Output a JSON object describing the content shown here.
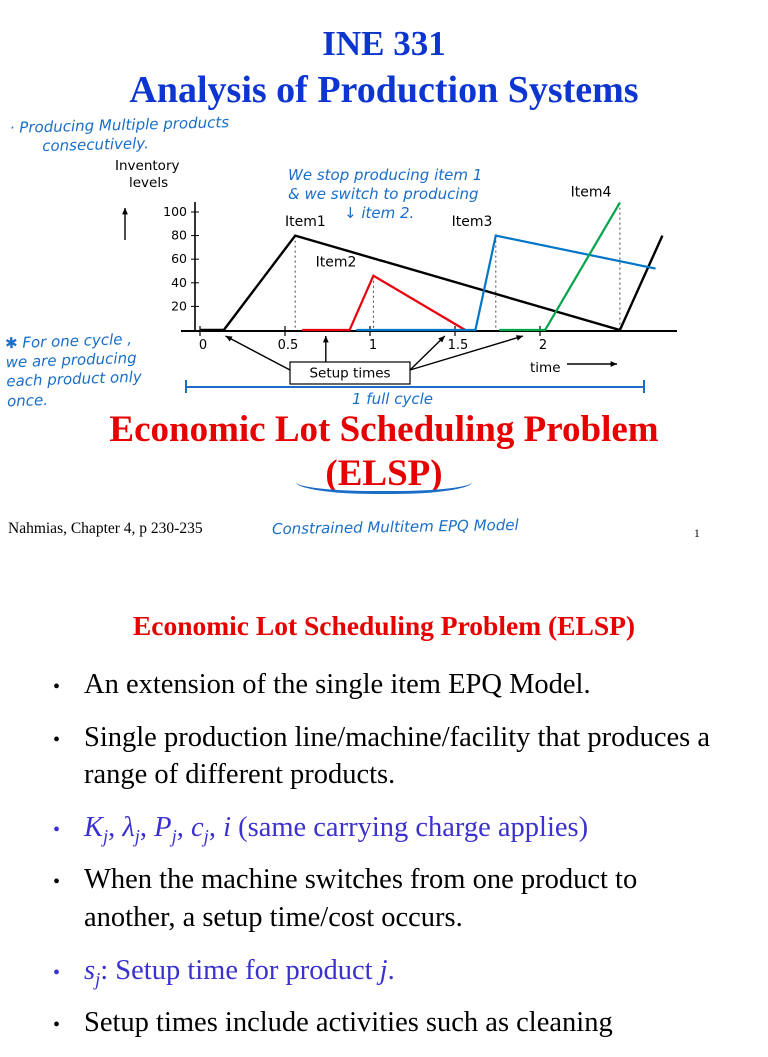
{
  "colors": {
    "title_blue": "#0d35d0",
    "title_red": "#e60000",
    "handwriting_blue": "#1a6ec8",
    "accent_blue": "#3b31cf"
  },
  "slide1": {
    "course_code": "INE 331",
    "course_title": "Analysis of Production Systems",
    "handwriting": {
      "top_note_line1": "· Producing  Multiple  products",
      "top_note_line2": "consecutively.",
      "stop_note_line1": "We stop producing  item 1",
      "stop_note_line2": "& we switch  to producing",
      "stop_note_line3": "↓ item 2.",
      "cycle_note_line1": "✱ For  one  cycle ,",
      "cycle_note_line2": "we  are  producing",
      "cycle_note_line3": "each  product  only",
      "cycle_note_line4": "once.",
      "full_cycle": "1  full  cycle",
      "bottom_note": "Constrained   Multitem   EPQ   Model"
    },
    "red_title_line1": "Economic Lot Scheduling Problem",
    "red_title_line2": "(ELSP)",
    "reference": "Nahmias, Chapter 4, p 230-235",
    "page_number": "1"
  },
  "chart_data": {
    "type": "line",
    "ylabel_line1": "Inventory",
    "ylabel_line2": "levels",
    "xlabel": "time",
    "yticks": [
      100,
      80,
      60,
      40,
      20
    ],
    "xticks": [
      0,
      0.5,
      1,
      1.5,
      2
    ],
    "xlim": [
      0,
      2.8
    ],
    "ylim": [
      0,
      115
    ],
    "grid": false,
    "series": [
      {
        "name": "Item1",
        "color": "#000000",
        "points": [
          [
            0,
            0
          ],
          [
            0.14,
            0
          ],
          [
            0.56,
            80
          ],
          [
            2.47,
            0
          ],
          [
            2.72,
            80
          ]
        ]
      },
      {
        "name": "Item2",
        "color": "#e8000d",
        "points": [
          [
            0.6,
            0
          ],
          [
            0.88,
            0
          ],
          [
            1.02,
            46
          ],
          [
            1.56,
            0
          ]
        ]
      },
      {
        "name": "Item3",
        "color": "#0076c8",
        "points": [
          [
            0.92,
            0
          ],
          [
            1.62,
            0
          ],
          [
            1.74,
            80
          ],
          [
            2.68,
            52
          ]
        ]
      },
      {
        "name": "Item4",
        "color": "#00a44a",
        "points": [
          [
            1.76,
            0
          ],
          [
            2.03,
            0
          ],
          [
            2.47,
            108
          ]
        ]
      }
    ],
    "series_labels": [
      {
        "text": "Item1",
        "x": 0.62,
        "y": 88
      },
      {
        "text": "Item2",
        "x": 0.8,
        "y": 54
      },
      {
        "text": "Item3",
        "x": 1.6,
        "y": 88
      },
      {
        "text": "Item4",
        "x": 2.3,
        "y": 113
      }
    ],
    "dotted": [
      [
        0.56,
        80
      ],
      [
        1.02,
        46
      ],
      [
        1.74,
        80
      ],
      [
        2.47,
        108
      ]
    ],
    "setup_label": "Setup times",
    "setup_targets": [
      0.15,
      0.74,
      1.44,
      1.9
    ]
  },
  "slide2": {
    "title": "Economic Lot Scheduling Problem (ELSP)",
    "bullets": [
      {
        "accent": false,
        "segments": [
          {
            "t": "An extension of the single item EPQ Model."
          }
        ]
      },
      {
        "accent": false,
        "segments": [
          {
            "t": "Single production line/machine/facility that produces a range of different products."
          }
        ]
      },
      {
        "accent": true,
        "segments": [
          {
            "t": "K",
            "i": true
          },
          {
            "t": "j",
            "i": true,
            "sub": true
          },
          {
            "t": ", "
          },
          {
            "t": "λ",
            "i": true
          },
          {
            "t": "j",
            "i": true,
            "sub": true
          },
          {
            "t": ", "
          },
          {
            "t": "P",
            "i": true
          },
          {
            "t": "j",
            "i": true,
            "sub": true
          },
          {
            "t": ", "
          },
          {
            "t": "c",
            "i": true
          },
          {
            "t": "j",
            "i": true,
            "sub": true
          },
          {
            "t": ", "
          },
          {
            "t": "i",
            "i": true
          },
          {
            "t": " (same carrying charge applies)"
          }
        ]
      },
      {
        "accent": false,
        "segments": [
          {
            "t": "When the machine switches from one product to another, a setup time/cost occurs."
          }
        ]
      },
      {
        "accent": true,
        "segments": [
          {
            "t": "s",
            "i": true
          },
          {
            "t": "j",
            "i": true,
            "sub": true
          },
          {
            "t": ": Setup time for product "
          },
          {
            "t": "j",
            "i": true
          },
          {
            "t": "."
          }
        ]
      },
      {
        "accent": false,
        "segments": [
          {
            "t": "Setup times include activities such as cleaning"
          }
        ]
      }
    ]
  }
}
